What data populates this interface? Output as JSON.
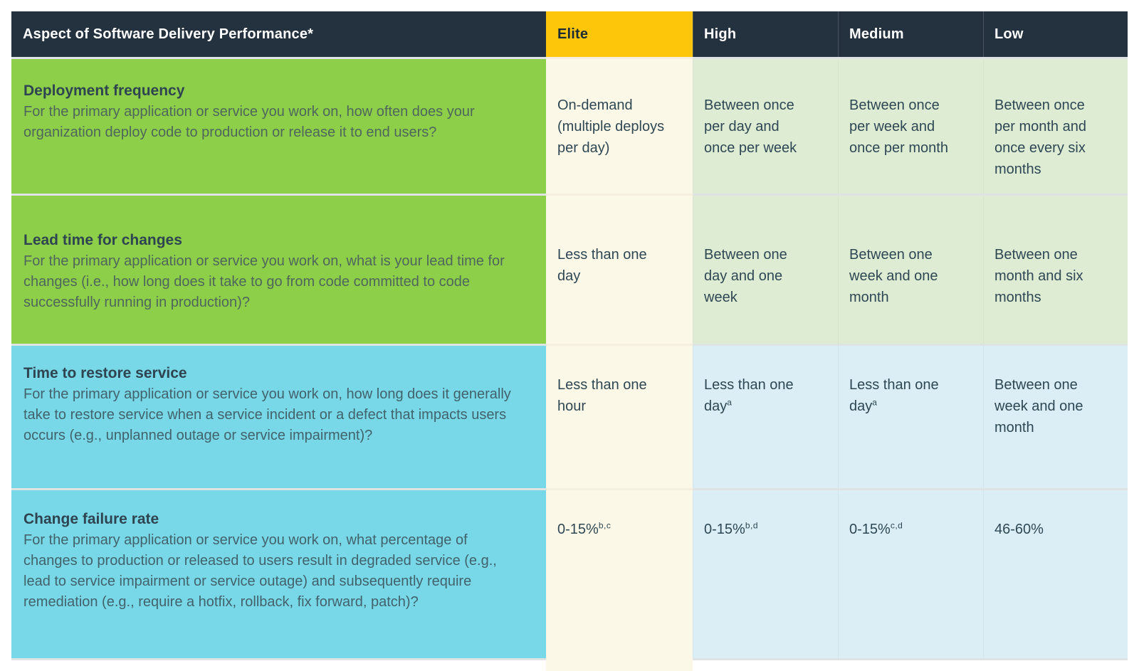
{
  "header": {
    "aspect": "Aspect of Software Delivery Performance*",
    "tiers": [
      "Elite",
      "High",
      "Medium",
      "Low"
    ]
  },
  "rows": [
    {
      "title": "Deployment frequency",
      "question": "For the primary application or service you work on, how often does your organization deploy code to production or release it to end users?",
      "cells": {
        "elite": {
          "text": "On-demand (multiple deploys per day)"
        },
        "high": {
          "text": "Between once per day and once per week"
        },
        "medium": {
          "text": "Between once per week and once per month"
        },
        "low": {
          "text": "Between once per month and once every six months"
        }
      }
    },
    {
      "title": "Lead time for changes",
      "question": "For the primary application or service you work on, what is your lead time for changes (i.e., how long does it take to go from code committed to code successfully running in production)?",
      "cells": {
        "elite": {
          "text": "Less than one day"
        },
        "high": {
          "text": "Between one day and one week"
        },
        "medium": {
          "text": "Between one week and one month"
        },
        "low": {
          "text": "Between one month and six months"
        }
      }
    },
    {
      "title": "Time to restore service",
      "question": "For the primary application or service you work on, how long does it generally take to restore service when a service incident or a defect that impacts users occurs (e.g., unplanned outage or service impairment)?",
      "cells": {
        "elite": {
          "text": "Less than one hour"
        },
        "high": {
          "text": "Less than one day",
          "sup": "a"
        },
        "medium": {
          "text": "Less than one day",
          "sup": "a"
        },
        "low": {
          "text": "Between one week and one month"
        }
      }
    },
    {
      "title": "Change failure rate",
      "question": "For the primary application or service you work on, what percentage of changes to production or released to users result in degraded service (e.g., lead to service impairment or service outage) and subsequently require remediation (e.g., require a hotfix, rollback, fix forward, patch)?",
      "cells": {
        "elite": {
          "text": "0-15%",
          "sup": "b,c"
        },
        "high": {
          "text": "0-15%",
          "sup": "b,d"
        },
        "medium": {
          "text": "0-15%",
          "sup": "c,d"
        },
        "low": {
          "text": "46-60%"
        }
      }
    }
  ],
  "colors": {
    "header_bg": "#24323f",
    "header_text": "#ffffff",
    "elite_header_bg": "#fdc60a",
    "elite_header_text": "#1d2b36",
    "row_green": "#8ecf49",
    "row_cyan": "#79d8e7",
    "elite_band_cream": "#fcf8e7",
    "cell_light_green": "#dfecd4",
    "cell_light_blue": "#dbeef5",
    "separator": "#dfe3e3",
    "title_text": "#2e4450",
    "value_text": "#2e4754"
  }
}
